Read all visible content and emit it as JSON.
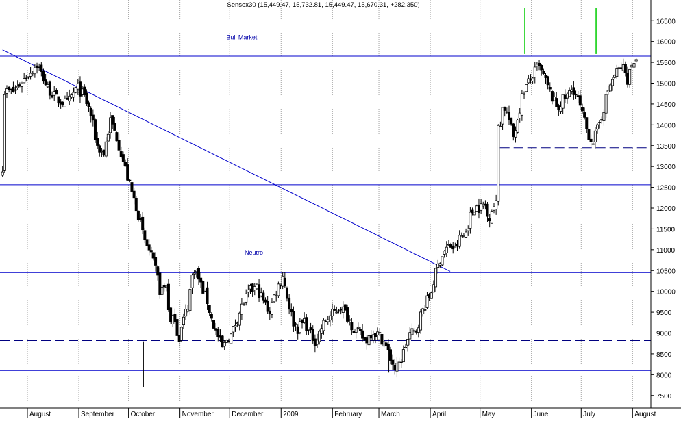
{
  "chart_data": {
    "type": "candlestick",
    "title": "Sensex30 (15,449.47, 15,732.81, 15,449.47, 15,670.31, +282.350)",
    "ylim": [
      7200,
      16800
    ],
    "x_range_days": [
      0,
      392
    ],
    "y_ticks": [
      7500,
      8000,
      8500,
      9000,
      9500,
      10000,
      10500,
      11000,
      11500,
      12000,
      12500,
      13000,
      13500,
      14000,
      14500,
      15000,
      15500,
      16000,
      16500
    ],
    "month_labels": [
      {
        "label": "August",
        "day": 0
      },
      {
        "label": "September",
        "day": 31
      },
      {
        "label": "October",
        "day": 61
      },
      {
        "label": "November",
        "day": 92
      },
      {
        "label": "December",
        "day": 122
      },
      {
        "label": "2009",
        "day": 153
      },
      {
        "label": "February",
        "day": 184
      },
      {
        "label": "March",
        "day": 212
      },
      {
        "label": "April",
        "day": 243
      },
      {
        "label": "May",
        "day": 273
      },
      {
        "label": "June",
        "day": 304
      },
      {
        "label": "July",
        "day": 334
      },
      {
        "label": "August",
        "day": 365
      }
    ],
    "annotations": [
      {
        "text": "Bull Market",
        "day": 120,
        "value": 16120
      },
      {
        "text": "Neutro",
        "day": 131,
        "value": 10950
      }
    ],
    "horizontal_lines": [
      {
        "value": 15650,
        "style": "solid",
        "color": "#0000cc"
      },
      {
        "value": 12560,
        "style": "solid",
        "color": "#0000cc"
      },
      {
        "value": 10450,
        "style": "solid",
        "color": "#0000cc"
      },
      {
        "value": 8100,
        "style": "solid",
        "color": "#0000cc"
      },
      {
        "value": 8820,
        "style": "dashed",
        "color": "#000080"
      },
      {
        "value": 11450,
        "style": "dashed",
        "color": "#000080",
        "from_day": 250,
        "to_day": 392
      },
      {
        "value": 13450,
        "style": "dashed",
        "color": "#000080",
        "from_day": 285,
        "to_day": 392
      }
    ],
    "trendline": {
      "from": [
        -15,
        15800
      ],
      "to": [
        255,
        10480
      ],
      "color": "#0000cc"
    },
    "markers": [
      {
        "day": 300,
        "from": 15700,
        "to": 16800,
        "color": "#00cc00"
      },
      {
        "day": 343,
        "from": 15700,
        "to": 16800,
        "color": "#00cc00"
      }
    ],
    "price_path": [
      [
        -15,
        13000
      ],
      [
        -8,
        14800
      ],
      [
        0,
        15200
      ],
      [
        6,
        15450
      ],
      [
        12,
        14900
      ],
      [
        18,
        14600
      ],
      [
        24,
        14500
      ],
      [
        30,
        14900
      ],
      [
        34,
        14700
      ],
      [
        38,
        14300
      ],
      [
        42,
        13500
      ],
      [
        46,
        13300
      ],
      [
        50,
        14100
      ],
      [
        54,
        13700
      ],
      [
        58,
        13100
      ],
      [
        62,
        12500
      ],
      [
        66,
        12000
      ],
      [
        70,
        11300
      ],
      [
        74,
        10900
      ],
      [
        78,
        10450
      ],
      [
        80,
        10000
      ],
      [
        84,
        10150
      ],
      [
        86,
        9200
      ],
      [
        89,
        9400
      ],
      [
        91,
        8800
      ],
      [
        94,
        9300
      ],
      [
        97,
        9700
      ],
      [
        99,
        10300
      ],
      [
        101,
        10600
      ],
      [
        104,
        10200
      ],
      [
        108,
        9850
      ],
      [
        111,
        9350
      ],
      [
        114,
        9000
      ],
      [
        118,
        8600
      ],
      [
        120,
        8850
      ],
      [
        123,
        8950
      ],
      [
        126,
        9300
      ],
      [
        130,
        9700
      ],
      [
        134,
        10000
      ],
      [
        138,
        10100
      ],
      [
        142,
        9800
      ],
      [
        146,
        9500
      ],
      [
        148,
        9800
      ],
      [
        150,
        10000
      ],
      [
        154,
        10400
      ],
      [
        157,
        9800
      ],
      [
        160,
        9300
      ],
      [
        163,
        9100
      ],
      [
        167,
        9300
      ],
      [
        170,
        9000
      ],
      [
        174,
        8800
      ],
      [
        177,
        9100
      ],
      [
        180,
        9300
      ],
      [
        185,
        9500
      ],
      [
        189,
        9650
      ],
      [
        193,
        9400
      ],
      [
        197,
        9100
      ],
      [
        201,
        8950
      ],
      [
        204,
        8800
      ],
      [
        208,
        9050
      ],
      [
        212,
        8950
      ],
      [
        215,
        8800
      ],
      [
        218,
        8500
      ],
      [
        220,
        8300
      ],
      [
        222,
        8100
      ],
      [
        225,
        8300
      ],
      [
        228,
        8700
      ],
      [
        231,
        9000
      ],
      [
        234,
        9000
      ],
      [
        237,
        9400
      ],
      [
        240,
        9700
      ],
      [
        243,
        9900
      ],
      [
        246,
        10400
      ],
      [
        249,
        10800
      ],
      [
        252,
        11000
      ],
      [
        255,
        11100
      ],
      [
        258,
        11000
      ],
      [
        261,
        11300
      ],
      [
        264,
        11350
      ],
      [
        267,
        11800
      ],
      [
        270,
        12050
      ],
      [
        273,
        12000
      ],
      [
        276,
        12100
      ],
      [
        278,
        11700
      ],
      [
        280,
        12000
      ],
      [
        283,
        12100
      ],
      [
        285,
        14000
      ],
      [
        287,
        14500
      ],
      [
        290,
        14200
      ],
      [
        293,
        13700
      ],
      [
        296,
        14200
      ],
      [
        299,
        14800
      ],
      [
        302,
        15000
      ],
      [
        305,
        15200
      ],
      [
        308,
        15400
      ],
      [
        311,
        15200
      ],
      [
        314,
        14900
      ],
      [
        317,
        14600
      ],
      [
        320,
        14400
      ],
      [
        323,
        14600
      ],
      [
        326,
        14700
      ],
      [
        329,
        14900
      ],
      [
        332,
        14600
      ],
      [
        335,
        14200
      ],
      [
        338,
        13800
      ],
      [
        341,
        13600
      ],
      [
        344,
        13900
      ],
      [
        347,
        14300
      ],
      [
        350,
        14800
      ],
      [
        353,
        15100
      ],
      [
        356,
        15300
      ],
      [
        359,
        15400
      ],
      [
        362,
        15100
      ],
      [
        365,
        15500
      ],
      [
        368,
        15670
      ]
    ],
    "special_wicks": [
      {
        "day": 70,
        "low": 7700,
        "high": 8800
      },
      {
        "day": 218,
        "low": 8050,
        "high": 8600
      }
    ],
    "candle_spacing_days": 1.3,
    "xlabel": "",
    "ylabel": "",
    "grid": "vertical-month-lines",
    "colors": {
      "bull": "#ffffff",
      "bear": "#000000",
      "line": "#0000cc",
      "axis": "#000000",
      "grid": "#a0a0a0"
    }
  }
}
